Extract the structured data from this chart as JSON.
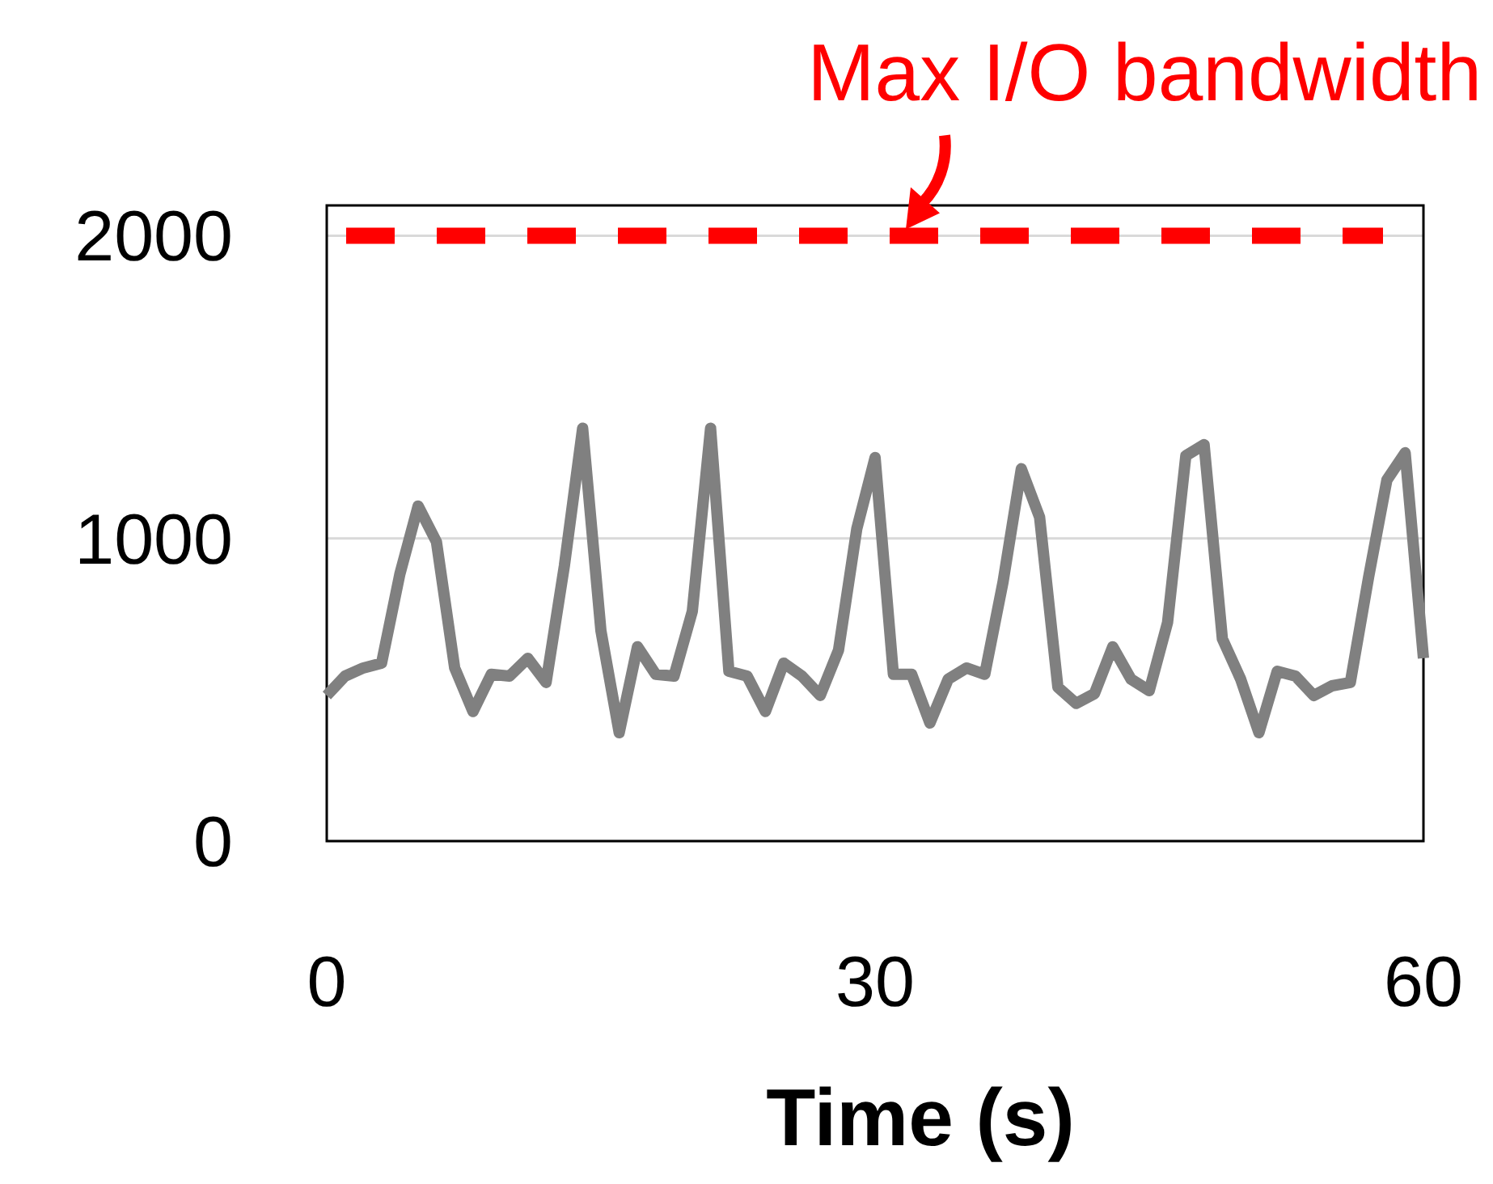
{
  "chart_data": {
    "type": "line",
    "xlabel": "Time (s)",
    "x": [
      0,
      1,
      2,
      3,
      4,
      5,
      6,
      7,
      8,
      9,
      10,
      11,
      12,
      13,
      14,
      15,
      16,
      17,
      18,
      19,
      20,
      21,
      22,
      23,
      24,
      25,
      26,
      27,
      28,
      29,
      30,
      31,
      32,
      33,
      34,
      35,
      36,
      37,
      38,
      39,
      40,
      41,
      42,
      43,
      44,
      45,
      46,
      47,
      48,
      49,
      50,
      51,
      52,
      53,
      54,
      55,
      56,
      57,
      58,
      59,
      60
    ],
    "series": [
      {
        "color": "#808080",
        "values": [
          481,
          545,
          572,
          588,
          882,
          1107,
          989,
          572,
          428,
          551,
          545,
          604,
          524,
          909,
          1364,
          695,
          358,
          642,
          551,
          545,
          759,
          1364,
          561,
          545,
          428,
          588,
          545,
          481,
          631,
          1032,
          1267,
          551,
          551,
          390,
          535,
          572,
          551,
          856,
          1230,
          1070,
          508,
          455,
          487,
          642,
          535,
          497,
          722,
          1273,
          1310,
          668,
          535,
          358,
          561,
          545,
          481,
          513,
          524,
          872,
          1193,
          1283,
          604
        ]
      }
    ],
    "xlim": [
      0,
      60
    ],
    "xticks": [
      0,
      30,
      60
    ],
    "ylim": [
      0,
      2100
    ],
    "yticks": [
      0,
      1000,
      2000
    ],
    "grid": "y",
    "marker": "none",
    "line_style": "solid",
    "ref_lines": [
      {
        "axis": "y",
        "value": 2000,
        "label": "Max I/O bandwidth",
        "color": "#ff0000",
        "line_style": "dashed"
      }
    ]
  }
}
